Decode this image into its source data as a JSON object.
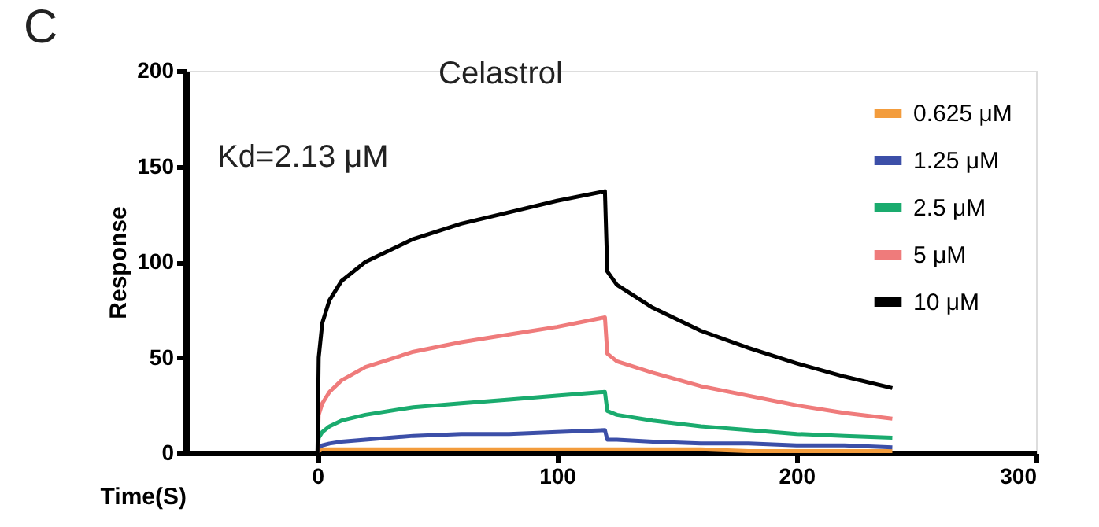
{
  "chart_data": {
    "type": "line",
    "title": "Celastrol",
    "xlabel": "Time(S)",
    "ylabel": "Response",
    "annotations": [
      "C",
      "Kd=2.13 μM"
    ],
    "x": [
      -55,
      0,
      0.5,
      2,
      5,
      10,
      20,
      40,
      60,
      80,
      100,
      120,
      121,
      125,
      140,
      160,
      180,
      200,
      220,
      240
    ],
    "series": [
      {
        "name": "0.625 μM",
        "color": "#f39c3c",
        "values": [
          0,
          0,
          1,
          2,
          2,
          2,
          2,
          2,
          2,
          2,
          2,
          2,
          2,
          2,
          2,
          2,
          1,
          1,
          1,
          1
        ]
      },
      {
        "name": "1.25 μM",
        "color": "#3c4fa8",
        "values": [
          0,
          0,
          3,
          4,
          5,
          6,
          7,
          9,
          10,
          10,
          11,
          12,
          7,
          7,
          6,
          5,
          5,
          4,
          4,
          3
        ]
      },
      {
        "name": "2.5 μM",
        "color": "#1aab6e",
        "values": [
          0,
          0,
          8,
          11,
          14,
          17,
          20,
          24,
          26,
          28,
          30,
          32,
          22,
          20,
          17,
          14,
          12,
          10,
          9,
          8
        ]
      },
      {
        "name": "5 μM",
        "color": "#ef7b7b",
        "values": [
          0,
          0,
          20,
          26,
          32,
          38,
          45,
          53,
          58,
          62,
          66,
          71,
          52,
          48,
          42,
          35,
          30,
          25,
          21,
          18
        ]
      },
      {
        "name": "10 μM",
        "color": "#000000",
        "values": [
          0,
          0,
          50,
          68,
          80,
          90,
          100,
          112,
          120,
          126,
          132,
          137,
          95,
          88,
          76,
          64,
          55,
          47,
          40,
          34
        ]
      }
    ],
    "xlim": [
      -55,
      300
    ],
    "xticks": [
      0,
      100,
      200,
      300
    ],
    "ylim": [
      0,
      200
    ],
    "yticks": [
      0,
      50,
      100,
      150,
      200
    ],
    "grid": false,
    "legend": "top right",
    "marker": "none",
    "line_style": "solid"
  }
}
